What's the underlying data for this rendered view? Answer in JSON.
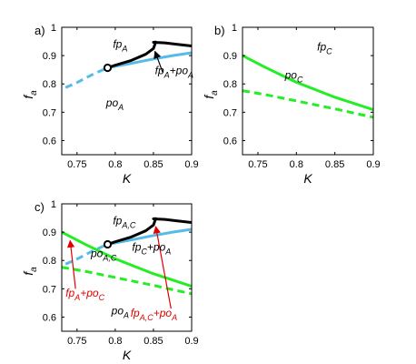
{
  "chart_data": [
    {
      "id": "a",
      "type": "line",
      "panel_label": "a)",
      "xlabel": "K",
      "ylabel": "f",
      "ylabel_sub": "a",
      "xlim": [
        0.73,
        0.9
      ],
      "ylim": [
        0.55,
        1.0
      ],
      "xticks": [
        "0.75",
        "0.8",
        "0.85",
        "0.9"
      ],
      "yticks": [
        "0.6",
        "0.7",
        "0.8",
        "0.9",
        "1"
      ],
      "series": [
        {
          "key": "po_dashed",
          "color": "#55bbe8",
          "style": "dashed",
          "x": [
            0.735,
            0.75,
            0.77,
            0.79
          ],
          "y": [
            0.787,
            0.805,
            0.833,
            0.857
          ]
        },
        {
          "key": "po_solid",
          "color": "#55bbe8",
          "style": "solid",
          "x": [
            0.79,
            0.82,
            0.85,
            0.875,
            0.9
          ],
          "y": [
            0.857,
            0.872,
            0.888,
            0.9,
            0.91
          ]
        },
        {
          "key": "fp_black",
          "color": "#000000",
          "style": "solid",
          "x": [
            0.79,
            0.8,
            0.82,
            0.84,
            0.85,
            0.853,
            0.85,
            0.865,
            0.88,
            0.9
          ],
          "y": [
            0.857,
            0.866,
            0.882,
            0.905,
            0.925,
            0.948,
            0.947,
            0.945,
            0.94,
            0.934
          ]
        }
      ],
      "markers": [
        {
          "x": 0.79,
          "y": 0.857,
          "shape": "open-circle"
        }
      ],
      "labels": [
        {
          "main": "fp",
          "sub": "A",
          "x": 0.797,
          "y": 0.928,
          "color": "#000"
        },
        {
          "main": "po",
          "sub": "A",
          "x": 0.788,
          "y": 0.72,
          "color": "#000"
        },
        {
          "main": "fp",
          "sub": "A",
          "mid": "+po",
          "sub2": "A",
          "x": 0.852,
          "y": 0.835,
          "color": "#000"
        }
      ],
      "arrows": [
        {
          "from": [
            0.862,
            0.842
          ],
          "to": [
            0.852,
            0.915
          ],
          "color": "#000000"
        }
      ]
    },
    {
      "id": "b",
      "type": "line",
      "panel_label": "b)",
      "xlabel": "K",
      "ylabel": "f",
      "ylabel_sub": "a",
      "xlim": [
        0.73,
        0.9
      ],
      "ylim": [
        0.55,
        1.0
      ],
      "xticks": [
        "0.75",
        "0.8",
        "0.85",
        "0.9"
      ],
      "yticks": [
        "0.6",
        "0.7",
        "0.8",
        "0.9",
        "1"
      ],
      "series": [
        {
          "key": "fpC",
          "color": "#22ee22",
          "style": "solid",
          "x": [
            0.73,
            0.76,
            0.8,
            0.85,
            0.9
          ],
          "y": [
            0.9,
            0.858,
            0.806,
            0.753,
            0.709
          ]
        },
        {
          "key": "poC",
          "color": "#22ee22",
          "style": "dashed",
          "x": [
            0.73,
            0.76,
            0.8,
            0.85,
            0.9
          ],
          "y": [
            0.776,
            0.762,
            0.74,
            0.712,
            0.682
          ]
        }
      ],
      "markers": [],
      "labels": [
        {
          "main": "fp",
          "sub": "C",
          "x": 0.827,
          "y": 0.918,
          "color": "#000"
        },
        {
          "main": "po",
          "sub": "C",
          "x": 0.785,
          "y": 0.818,
          "color": "#000"
        }
      ],
      "arrows": []
    },
    {
      "id": "c",
      "type": "line",
      "panel_label": "c)",
      "xlabel": "K",
      "ylabel": "f",
      "ylabel_sub": "a",
      "xlim": [
        0.73,
        0.9
      ],
      "ylim": [
        0.55,
        1.0
      ],
      "xticks": [
        "0.75",
        "0.8",
        "0.85",
        "0.9"
      ],
      "yticks": [
        "0.6",
        "0.7",
        "0.8",
        "0.9",
        "1"
      ],
      "series": [
        {
          "key": "fpC",
          "color": "#22ee22",
          "style": "solid",
          "x": [
            0.73,
            0.76,
            0.8,
            0.85,
            0.9
          ],
          "y": [
            0.9,
            0.858,
            0.806,
            0.753,
            0.709
          ]
        },
        {
          "key": "poC",
          "color": "#22ee22",
          "style": "dashed",
          "x": [
            0.73,
            0.76,
            0.8,
            0.85,
            0.9
          ],
          "y": [
            0.776,
            0.762,
            0.74,
            0.712,
            0.682
          ]
        },
        {
          "key": "po_dashed",
          "color": "#55bbe8",
          "style": "dashed",
          "x": [
            0.735,
            0.75,
            0.77,
            0.79
          ],
          "y": [
            0.787,
            0.805,
            0.833,
            0.857
          ]
        },
        {
          "key": "po_solid",
          "color": "#55bbe8",
          "style": "solid",
          "x": [
            0.79,
            0.82,
            0.85,
            0.875,
            0.9
          ],
          "y": [
            0.857,
            0.872,
            0.888,
            0.9,
            0.91
          ]
        },
        {
          "key": "fp_black",
          "color": "#000000",
          "style": "solid",
          "x": [
            0.79,
            0.8,
            0.82,
            0.84,
            0.85,
            0.853,
            0.85,
            0.865,
            0.88,
            0.9
          ],
          "y": [
            0.857,
            0.866,
            0.882,
            0.905,
            0.925,
            0.948,
            0.947,
            0.945,
            0.94,
            0.934
          ]
        }
      ],
      "markers": [
        {
          "x": 0.79,
          "y": 0.857,
          "shape": "open-circle"
        }
      ],
      "labels": [
        {
          "main": "fp",
          "sub": "A,C",
          "x": 0.797,
          "y": 0.928,
          "color": "#000"
        },
        {
          "main": "fp",
          "sub": "C",
          "mid": "+po",
          "sub2": "A",
          "x": 0.822,
          "y": 0.835,
          "color": "#000"
        },
        {
          "main": "po",
          "sub": "A,C",
          "x": 0.768,
          "y": 0.812,
          "color": "#000"
        },
        {
          "main": "fp",
          "sub": "A",
          "mid": "+po",
          "sub2": "C",
          "x": 0.735,
          "y": 0.672,
          "color": "#e00000"
        },
        {
          "main": "po",
          "sub": "A",
          "x": 0.795,
          "y": 0.61,
          "color": "#000"
        },
        {
          "main": "fp",
          "sub": "A,C",
          "mid": "+po",
          "sub2": "A",
          "x": 0.82,
          "y": 0.602,
          "color": "#e00000"
        }
      ],
      "arrows": [
        {
          "from": [
            0.748,
            0.7
          ],
          "to": [
            0.741,
            0.87
          ],
          "color": "#e00000"
        },
        {
          "from": [
            0.873,
            0.63
          ],
          "to": [
            0.853,
            0.92
          ],
          "color": "#e00000"
        }
      ]
    }
  ]
}
